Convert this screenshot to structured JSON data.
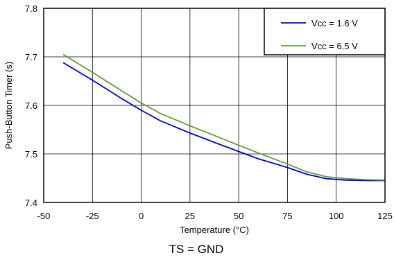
{
  "chart_data": {
    "type": "line",
    "xlabel": "Temperature (°C)",
    "ylabel": "Push-Button Timer (s)",
    "caption": "TS = GND",
    "xlim": [
      -50,
      125
    ],
    "ylim": [
      7.4,
      7.8
    ],
    "x_ticks": [
      -50,
      -25,
      0,
      25,
      50,
      75,
      100,
      125
    ],
    "y_ticks": [
      7.4,
      7.5,
      7.6,
      7.7,
      7.8
    ],
    "x_tick_labels": [
      "-50",
      "-25",
      "0",
      "25",
      "50",
      "75",
      "100",
      "125"
    ],
    "y_tick_labels": [
      "7.4",
      "7.5",
      "7.6",
      "7.7",
      "7.8"
    ],
    "grid": true,
    "legend_position": "top-right",
    "series": [
      {
        "name": "Vcc = 1.6 V",
        "color": "#0000cc",
        "x": [
          -40,
          -25,
          -10,
          0,
          10,
          25,
          40,
          50,
          60,
          75,
          85,
          95,
          105,
          115,
          125
        ],
        "y": [
          7.688,
          7.652,
          7.614,
          7.59,
          7.568,
          7.543,
          7.52,
          7.505,
          7.49,
          7.472,
          7.458,
          7.449,
          7.446,
          7.445,
          7.445
        ]
      },
      {
        "name": "Vcc = 6.5 V",
        "color": "#669933",
        "x": [
          -40,
          -25,
          -10,
          0,
          10,
          25,
          40,
          50,
          60,
          75,
          85,
          95,
          105,
          115,
          125
        ],
        "y": [
          7.705,
          7.668,
          7.63,
          7.605,
          7.583,
          7.558,
          7.534,
          7.518,
          7.502,
          7.479,
          7.463,
          7.453,
          7.449,
          7.447,
          7.446
        ]
      }
    ]
  }
}
